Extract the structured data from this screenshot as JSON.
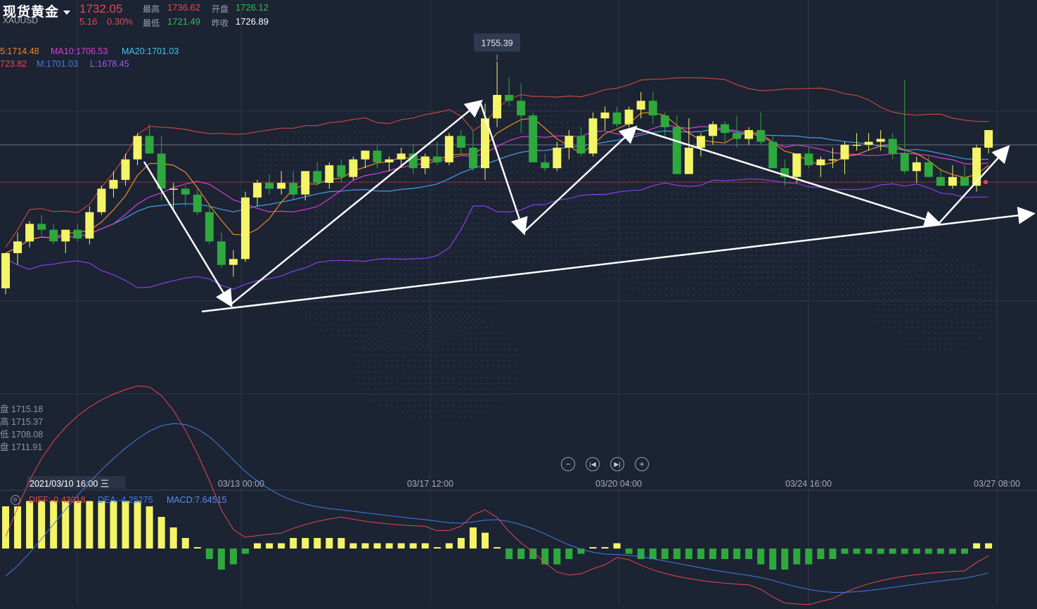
{
  "header": {
    "title": "现货黄金",
    "symbol": "XAUUSD",
    "price": "1732.05",
    "change": "5.16",
    "change_pct": "0.30%",
    "high_label": "最高",
    "high": "1736.62",
    "open_label": "开盘",
    "open": "1726.12",
    "low_label": "最低",
    "low": "1721.49",
    "prev_label": "昨收",
    "prev": "1726.89"
  },
  "indicators": {
    "ma5": "5:1714.48",
    "ma10": "MA10:1706.53",
    "ma20": "MA20:1701.03",
    "boll_u": "723.82",
    "boll_m": "M:1701.03",
    "boll_l": "L:1678.45"
  },
  "crosshair_ohlc": [
    "盘 1715.18",
    "高 1715.37",
    "低 1708.08",
    "盘 1711.91"
  ],
  "peak_label": "1755.39",
  "x_ticks": [
    "2021/03/10 16:00 三",
    "03/13 00:00",
    "03/17 12:00",
    "03/20 04:00",
    "03/24 16:00",
    "03/27 08:00"
  ],
  "macd": {
    "diff": "DIFF:-0.43018",
    "dea": "DEA:-4.25275",
    "macd": "MACD:7.64515"
  },
  "controls": [
    "zoom-out",
    "step-back",
    "step-forward",
    "zoom-in"
  ],
  "colors": {
    "background": "#1c2333",
    "up_candle": "#f4f468",
    "down_candle": "#2fa83e",
    "ma5": "#f08a24",
    "ma10": "#d63fd6",
    "ma20": "#3fa2e8",
    "boll_upper": "#c2493a",
    "boll_mid": "#3f7fe0",
    "boll_lower": "#8a3fe8",
    "price_red": "#e8474f",
    "price_green": "#2fbf5a"
  },
  "chart_data": {
    "type": "candlestick",
    "ylim": [
      1642,
      1762
    ],
    "candles": [
      [
        1678,
        1690,
        1676,
        1690
      ],
      [
        1690,
        1697,
        1686,
        1694
      ],
      [
        1694,
        1701,
        1692,
        1700
      ],
      [
        1700,
        1703,
        1696,
        1698
      ],
      [
        1698,
        1700,
        1693,
        1694
      ],
      [
        1694,
        1698,
        1690,
        1698
      ],
      [
        1698,
        1700,
        1694,
        1695
      ],
      [
        1695,
        1706,
        1693,
        1704
      ],
      [
        1704,
        1713,
        1703,
        1712
      ],
      [
        1712,
        1718,
        1709,
        1715
      ],
      [
        1715,
        1724,
        1713,
        1722
      ],
      [
        1722,
        1731,
        1720,
        1730
      ],
      [
        1730,
        1734,
        1724,
        1724
      ],
      [
        1724,
        1730,
        1708,
        1712
      ],
      [
        1712,
        1714,
        1705,
        1712
      ],
      [
        1712,
        1713,
        1706,
        1710
      ],
      [
        1710,
        1712,
        1703,
        1704
      ],
      [
        1704,
        1707,
        1693,
        1694
      ],
      [
        1694,
        1697,
        1685,
        1686
      ],
      [
        1686,
        1691,
        1682,
        1688
      ],
      [
        1688,
        1711,
        1687,
        1709
      ],
      [
        1709,
        1715,
        1706,
        1714
      ],
      [
        1714,
        1717,
        1710,
        1712
      ],
      [
        1712,
        1718,
        1710,
        1714
      ],
      [
        1714,
        1718,
        1708,
        1710
      ],
      [
        1710,
        1718,
        1708,
        1718
      ],
      [
        1718,
        1721,
        1713,
        1714
      ],
      [
        1714,
        1721,
        1712,
        1720
      ],
      [
        1720,
        1722,
        1714,
        1716
      ],
      [
        1716,
        1723,
        1715,
        1722
      ],
      [
        1722,
        1725,
        1719,
        1725
      ],
      [
        1725,
        1727,
        1719,
        1721
      ],
      [
        1721,
        1723,
        1718,
        1722
      ],
      [
        1722,
        1726,
        1720,
        1724
      ],
      [
        1724,
        1727,
        1717,
        1719
      ],
      [
        1719,
        1724,
        1717,
        1723
      ],
      [
        1723,
        1728,
        1720,
        1721
      ],
      [
        1721,
        1731,
        1720,
        1730
      ],
      [
        1730,
        1732,
        1724,
        1726
      ],
      [
        1726,
        1732,
        1718,
        1719
      ],
      [
        1719,
        1741,
        1715,
        1736
      ],
      [
        1736,
        1755.39,
        1733,
        1744
      ],
      [
        1744,
        1750,
        1740,
        1742
      ],
      [
        1742,
        1748,
        1731,
        1737
      ],
      [
        1737,
        1738,
        1721,
        1721
      ],
      [
        1721,
        1724,
        1718,
        1719
      ],
      [
        1719,
        1728,
        1718,
        1726
      ],
      [
        1726,
        1732,
        1722,
        1730
      ],
      [
        1730,
        1733,
        1723,
        1724
      ],
      [
        1724,
        1738,
        1723,
        1736
      ],
      [
        1736,
        1740,
        1732,
        1738
      ],
      [
        1738,
        1740,
        1733,
        1734
      ],
      [
        1734,
        1740,
        1733,
        1739
      ],
      [
        1739,
        1745,
        1736,
        1742
      ],
      [
        1742,
        1745,
        1734,
        1737
      ],
      [
        1737,
        1738,
        1730,
        1733
      ],
      [
        1733,
        1737,
        1717,
        1717
      ],
      [
        1717,
        1736,
        1717,
        1726
      ],
      [
        1726,
        1731,
        1723,
        1730
      ],
      [
        1730,
        1735,
        1727,
        1734
      ],
      [
        1734,
        1735,
        1728,
        1731
      ],
      [
        1731,
        1737,
        1726,
        1729
      ],
      [
        1729,
        1733,
        1727,
        1732
      ],
      [
        1732,
        1738,
        1727,
        1728
      ],
      [
        1728,
        1730,
        1719,
        1719
      ],
      [
        1719,
        1722,
        1713,
        1716
      ],
      [
        1716,
        1724,
        1714,
        1724
      ],
      [
        1724,
        1726,
        1719,
        1720
      ],
      [
        1720,
        1723,
        1716,
        1722
      ],
      [
        1722,
        1726,
        1719,
        1722
      ],
      [
        1722,
        1728,
        1717,
        1727
      ],
      [
        1727,
        1731,
        1725,
        1727
      ],
      [
        1727,
        1731,
        1725,
        1728
      ],
      [
        1728,
        1732,
        1725,
        1729
      ],
      [
        1729,
        1731,
        1722,
        1724
      ],
      [
        1724,
        1749,
        1717,
        1718
      ],
      [
        1718,
        1723,
        1714,
        1721
      ],
      [
        1721,
        1723,
        1716,
        1716
      ],
      [
        1716,
        1719,
        1713,
        1713
      ],
      [
        1713,
        1720,
        1712,
        1716
      ],
      [
        1716,
        1720,
        1713,
        1713
      ],
      [
        1713,
        1727,
        1711,
        1726
      ],
      [
        1726,
        1732,
        1724,
        1732
      ]
    ],
    "macd_hist": [
      8,
      8,
      9,
      9,
      9,
      9,
      9,
      9,
      9,
      9,
      9,
      9,
      8,
      6,
      4,
      2,
      0,
      -2,
      -4,
      -3,
      -1,
      1,
      1,
      1,
      2,
      2,
      2,
      2,
      2,
      1,
      1,
      1,
      1,
      1,
      1,
      1,
      0,
      1,
      2,
      4,
      3,
      0,
      -2,
      -2,
      -2,
      -3,
      -3,
      -2,
      -1,
      0,
      0,
      1,
      -1,
      -2,
      -2,
      -2,
      -2,
      -2,
      -2,
      -2,
      -2,
      -2,
      -2,
      -3,
      -4,
      -4,
      -3,
      -3,
      -2,
      -2,
      -1,
      -1,
      -1,
      -1,
      -1,
      -1,
      -1,
      -1,
      -1,
      -1,
      -1,
      1,
      1
    ]
  }
}
